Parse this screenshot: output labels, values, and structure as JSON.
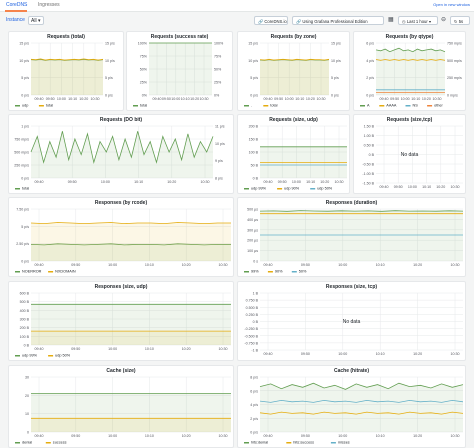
{
  "tabs": [
    {
      "label": "CoreDNS"
    },
    {
      "label": "Ingresses"
    }
  ],
  "open_new": "Open in new window",
  "toolbar": {
    "variable_label": "Instance",
    "variable_value": "All",
    "corednsio": "CoreDNS.io",
    "grafana_pro": "Using Grafana Professional Edition",
    "time_range": "Last 1 hour",
    "refresh": "5s",
    "icons": [
      "link-icon",
      "grid-icon",
      "clock-icon",
      "zoom-out-icon",
      "refresh-icon",
      "chevron-down-icon"
    ]
  },
  "xticks": [
    "09:40",
    "09:50",
    "10:00",
    "10:10",
    "10:20",
    "10:30"
  ],
  "colors": {
    "green": "#629e51",
    "yellow": "#e5ac0e",
    "teal": "#64b0c8",
    "olive": "#a0a24a",
    "grid": "#e6e8ea",
    "fillY": "#fbf3dc",
    "fillG": "#e9f3e6"
  },
  "panels": [
    {
      "title": "Requests (total)",
      "chart_data": {
        "type": "line",
        "ylabel_left": [
          "15 p/s",
          "10 p/s",
          "5 p/s",
          "0 p/s"
        ],
        "ylabel_right": [
          "15 p/s",
          "10 p/s",
          "5 p/s",
          "0 p/s"
        ],
        "ylim": [
          0,
          15
        ],
        "series": [
          {
            "name": "udp",
            "color": "#629e51",
            "values": [
              10.2,
              10.1,
              10.3,
              10.0,
              10.2,
              10.1,
              10.2,
              10.0,
              10.1,
              10.2,
              10.1,
              10.3,
              10.1,
              10.2,
              10.0,
              10.2
            ]
          },
          {
            "name": "total",
            "color": "#e5ac0e",
            "values": [
              10.3,
              10.2,
              10.4,
              10.1,
              10.3,
              10.2,
              10.3,
              10.1,
              10.2,
              10.3,
              10.2,
              10.4,
              10.2,
              10.3,
              10.1,
              10.3
            ]
          }
        ]
      }
    },
    {
      "title": "Requests (success rate)",
      "chart_data": {
        "type": "line",
        "ylabel_left": [
          "100%",
          "75%",
          "50%",
          "25%",
          "0%"
        ],
        "ylabel_right": [
          "100%",
          "75%",
          "50%",
          "25%",
          "0%"
        ],
        "ylim": [
          0,
          100
        ],
        "series": [
          {
            "name": "total",
            "color": "#629e51",
            "values": [
              100,
              100,
              100,
              100,
              100,
              100,
              100,
              100,
              100,
              100,
              100,
              100,
              100,
              100,
              100,
              100
            ]
          }
        ]
      }
    },
    {
      "title": "Requests (by zone)",
      "chart_data": {
        "type": "line",
        "ylabel_left": [
          "15 p/s",
          "10 p/s",
          "5 p/s",
          "0 p/s"
        ],
        "ylabel_right": [
          "15 p/s",
          "10 p/s",
          "5 p/s",
          "0 p/s"
        ],
        "ylim": [
          0,
          15
        ],
        "series": [
          {
            "name": ".",
            "color": "#629e51",
            "values": [
              10.1,
              10.0,
              10.2,
              10.0,
              10.1,
              10.2,
              10.1,
              10.0,
              10.2,
              10.1,
              10.0,
              10.2,
              10.1,
              10.1,
              10.0,
              10.2
            ]
          },
          {
            "name": "total",
            "color": "#e5ac0e",
            "values": [
              10.2,
              10.1,
              10.3,
              10.1,
              10.2,
              10.3,
              10.2,
              10.1,
              10.3,
              10.2,
              10.1,
              10.3,
              10.2,
              10.2,
              10.1,
              10.3
            ]
          }
        ]
      }
    },
    {
      "title": "Requests (by qtype)",
      "chart_data": {
        "type": "line",
        "ylabel_left": [
          "6 p/s",
          "4 p/s",
          "2 p/s",
          "0 p/s"
        ],
        "ylabel_right": [
          "750 mp/s",
          "500 mp/s",
          "250 mp/s",
          "0 mp/s"
        ],
        "ylim": [
          0,
          6
        ],
        "series": [
          {
            "name": "A",
            "color": "#629e51",
            "values": [
              5.2,
              5.1,
              5.3,
              5.0,
              5.2,
              5.4,
              5.1,
              5.2,
              5.0,
              5.3,
              5.1,
              5.2,
              5.3,
              5.1,
              5.2,
              5.0
            ]
          },
          {
            "name": "AAAA",
            "color": "#e5ac0e",
            "values": [
              4.1,
              4.0,
              4.1,
              4.0,
              4.1,
              4.0,
              4.1,
              4.0,
              4.1,
              4.0,
              4.1,
              4.0,
              4.1,
              4.0,
              4.1,
              4.0
            ]
          },
          {
            "name": "NS",
            "color": "#64b0c8",
            "values": [
              0.6,
              0.6,
              0.6,
              0.6,
              0.6,
              0.6,
              0.6,
              0.6,
              0.6,
              0.6,
              0.6,
              0.6,
              0.6,
              0.6,
              0.6,
              0.6
            ]
          },
          {
            "name": "other",
            "color": "#ef843c",
            "values": [
              0.3,
              0.3,
              0.3,
              0.3,
              0.3,
              0.3,
              0.3,
              0.3,
              0.3,
              0.3,
              0.3,
              0.3,
              0.3,
              0.3,
              0.3,
              0.3
            ]
          }
        ]
      }
    },
    {
      "title": "Requests (DO bit)",
      "chart_data": {
        "type": "line",
        "ylabel_left": [
          "1 p/s",
          "750 mp/s",
          "500 mp/s",
          "250 mp/s",
          "0 p/s"
        ],
        "ylabel_right": [
          "11 p/s",
          "10 p/s",
          "9 p/s",
          "8 p/s"
        ],
        "ylim": [
          0,
          1
        ],
        "series": [
          {
            "name": "total",
            "color": "#629e51",
            "values": [
              0.5,
              0.8,
              0.3,
              0.7,
              0.4,
              0.9,
              0.35,
              0.75,
              0.45,
              0.85,
              0.3,
              0.7,
              0.5,
              0.8,
              0.35,
              0.75,
              0.4,
              0.9,
              0.45,
              0.7,
              0.3,
              0.8,
              0.5,
              0.75,
              0.35,
              0.85,
              0.4,
              0.7,
              0.5,
              0.8
            ]
          }
        ]
      }
    },
    {
      "title": "Requests (size, udp)",
      "chart_data": {
        "type": "line",
        "ylabel_left": [
          "200 B",
          "150 B",
          "100 B",
          "50 B",
          "0 B"
        ],
        "ylim": [
          0,
          200
        ],
        "series": [
          {
            "name": "udp 99%",
            "color": "#629e51",
            "values": [
              120,
              120,
              120,
              120,
              120,
              120,
              120,
              120,
              120,
              120,
              120,
              120
            ]
          },
          {
            "name": "udp 90%",
            "color": "#e5ac0e",
            "values": [
              60,
              60,
              60,
              60,
              60,
              60,
              60,
              60,
              60,
              60,
              60,
              60
            ]
          },
          {
            "name": "udp 50%",
            "color": "#64b0c8",
            "values": [
              50,
              50,
              50,
              50,
              50,
              50,
              50,
              50,
              50,
              50,
              50,
              50
            ]
          }
        ]
      }
    },
    {
      "title": "Requests (size,tcp)",
      "nodata": "No data",
      "chart_data": {
        "type": "line",
        "ylabel_left": [
          "1.50 B",
          "1.00 B",
          "0.50 B",
          "0 B",
          "-0.50 B",
          "-1.00 B",
          "-1.50 B"
        ],
        "series": []
      }
    },
    {
      "title": "Responses (by rcode)",
      "chart_data": {
        "type": "line",
        "ylabel_left": [
          "7.50 p/s",
          "5 p/s",
          "2.50 p/s",
          "0 p/s"
        ],
        "ylim": [
          0,
          10
        ],
        "series": [
          {
            "name": "NOERROR",
            "color": "#629e51",
            "values": [
              3.2,
              3.1,
              3.3,
              3.2,
              3.1,
              3.2,
              3.3,
              3.1,
              3.2,
              3.2,
              3.1,
              3.3,
              3.2,
              3.1,
              3.2,
              3.2
            ]
          },
          {
            "name": "NXDOMAIN",
            "color": "#e5ac0e",
            "values": [
              7.3,
              7.2,
              7.4,
              7.3,
              7.2,
              7.3,
              7.4,
              7.2,
              7.3,
              7.3,
              7.2,
              7.4,
              7.3,
              7.2,
              7.3,
              7.3
            ]
          }
        ]
      }
    },
    {
      "title": "Responses (duration)",
      "chart_data": {
        "type": "line",
        "ylabel_left": [
          "500 µs",
          "400 µs",
          "300 µs",
          "200 µs",
          "100 µs",
          "0 s"
        ],
        "ylim": [
          0,
          500
        ],
        "series": [
          {
            "name": "99%",
            "color": "#629e51",
            "values": [
              480,
              482,
              478,
              485,
              481,
              479,
              483,
              480,
              482,
              478,
              484,
              480,
              481,
              479,
              483,
              480
            ]
          },
          {
            "name": "90%",
            "color": "#e5ac0e",
            "values": [
              455,
              455,
              455,
              455,
              455,
              455,
              455,
              455,
              455,
              455,
              455,
              455,
              455,
              455,
              455,
              455
            ]
          },
          {
            "name": "50%",
            "color": "#64b0c8",
            "values": [
              250,
              250,
              250,
              250,
              250,
              250,
              250,
              250,
              250,
              250,
              250,
              250,
              250,
              250,
              250,
              250
            ]
          }
        ]
      }
    },
    {
      "title": "Responses (size, udp)",
      "chart_data": {
        "type": "line",
        "ylabel_left": [
          "600 B",
          "500 B",
          "400 B",
          "300 B",
          "200 B",
          "100 B",
          "0 B"
        ],
        "ylim": [
          0,
          600
        ],
        "series": [
          {
            "name": "udp 99%",
            "color": "#629e51",
            "values": [
              470,
              470,
              470,
              470,
              470,
              470,
              470,
              470,
              470,
              470,
              470,
              470
            ]
          },
          {
            "name": "udp 50%",
            "color": "#e5ac0e",
            "values": [
              160,
              160,
              160,
              160,
              160,
              160,
              160,
              160,
              160,
              160,
              160,
              160
            ]
          }
        ]
      }
    },
    {
      "title": "Responses (size, tcp)",
      "nodata": "No data",
      "chart_data": {
        "type": "line",
        "ylabel_left": [
          "1 B",
          "0.750 B",
          "0.500 B",
          "0.250 B",
          "0 B",
          "-0.250 B",
          "-0.500 B",
          "-0.750 B",
          "-1 B"
        ],
        "series": []
      }
    },
    {
      "title": "Cache (size)",
      "chart_data": {
        "type": "line",
        "ylabel_left": [
          "30",
          "20",
          "10",
          "0"
        ],
        "ylim": [
          0,
          30
        ],
        "series": [
          {
            "name": "denial",
            "color": "#629e51",
            "values": [
              21,
              21,
              21,
              21,
              21,
              21,
              21,
              21,
              21,
              21,
              21,
              21,
              21,
              21,
              21,
              21
            ]
          },
          {
            "name": "success",
            "color": "#e5ac0e",
            "values": [
              7.5,
              7.5,
              7.5,
              7.5,
              7.5,
              7.5,
              7.5,
              7.5,
              7.5,
              7.5,
              7.5,
              7.5,
              7.5,
              7.5,
              7.5,
              7.5
            ]
          }
        ]
      }
    },
    {
      "title": "Cache (hitrate)",
      "chart_data": {
        "type": "line",
        "ylabel_left": [
          "8 p/s",
          "6 p/s",
          "4 p/s",
          "2 p/s",
          "0 p/s"
        ],
        "ylim": [
          0,
          8
        ],
        "series": [
          {
            "name": "hits:denial",
            "color": "#629e51",
            "values": [
              6.6,
              7.0,
              6.3,
              6.9,
              6.5,
              7.1,
              6.4,
              6.8,
              6.2,
              7.0,
              6.5,
              6.9,
              6.3,
              7.1,
              6.6,
              6.8,
              6.4,
              7.0,
              6.5,
              6.9
            ]
          },
          {
            "name": "hits:success",
            "color": "#e5ac0e",
            "values": [
              2.8,
              2.6,
              2.9,
              2.7,
              2.8,
              2.6,
              2.9,
              2.7,
              2.8,
              2.6,
              2.9,
              2.7,
              2.8,
              2.6,
              2.9,
              2.7,
              2.8,
              2.6,
              2.9,
              2.7
            ]
          },
          {
            "name": "misses",
            "color": "#64b0c8",
            "values": [
              4.5,
              4.3,
              4.6,
              4.4,
              4.5,
              4.3,
              4.6,
              4.4,
              4.5,
              4.3,
              4.6,
              4.4,
              4.5,
              4.3,
              4.6,
              4.4,
              4.5,
              4.3,
              4.6,
              4.4
            ]
          }
        ]
      }
    }
  ]
}
